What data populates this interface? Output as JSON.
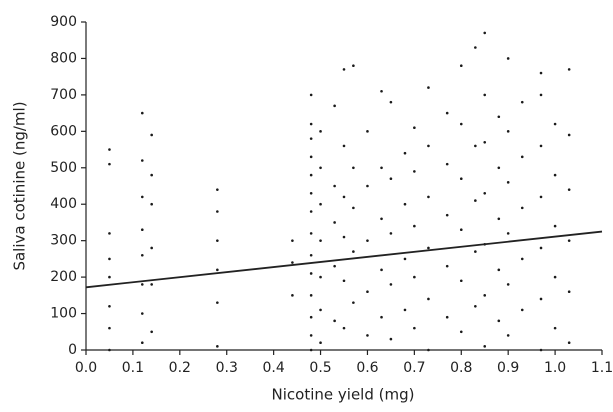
{
  "chart_data": {
    "type": "scatter",
    "x_label": "Nicotine yield (mg)",
    "y_label": "Saliva cotinine (ng/ml)",
    "color": "#1a1a1a",
    "xlim": [
      0,
      1.1
    ],
    "ylim": [
      0,
      900
    ],
    "xticks": [
      {
        "value": 0,
        "label": "0.0"
      },
      0.1,
      0.2,
      0.3,
      0.4,
      0.5,
      0.6,
      0.7,
      0.8,
      0.9,
      {
        "value": 1,
        "label": "1.0"
      },
      1.1
    ],
    "yticks": [
      0,
      100,
      200,
      300,
      400,
      500,
      600,
      700,
      800,
      900
    ],
    "x": [
      0.05,
      0.05,
      0.05,
      0.05,
      0.05,
      0.05,
      0.05,
      0.05,
      0.12,
      0.12,
      0.12,
      0.12,
      0.12,
      0.12,
      0.12,
      0.12,
      0.14,
      0.14,
      0.14,
      0.14,
      0.14,
      0.14,
      0.28,
      0.28,
      0.28,
      0.28,
      0.28,
      0.28,
      0.44,
      0.44,
      0.44,
      0.48,
      0.48,
      0.48,
      0.48,
      0.48,
      0.48,
      0.48,
      0.48,
      0.48,
      0.48,
      0.48,
      0.48,
      0.48,
      0.48,
      0.5,
      0.5,
      0.5,
      0.5,
      0.5,
      0.5,
      0.5,
      0.53,
      0.53,
      0.53,
      0.53,
      0.53,
      0.55,
      0.55,
      0.55,
      0.55,
      0.55,
      0.55,
      0.57,
      0.57,
      0.57,
      0.57,
      0.57,
      0.6,
      0.6,
      0.6,
      0.6,
      0.6,
      0.63,
      0.63,
      0.63,
      0.63,
      0.63,
      0.65,
      0.65,
      0.65,
      0.65,
      0.65,
      0.68,
      0.68,
      0.68,
      0.68,
      0.7,
      0.7,
      0.7,
      0.7,
      0.7,
      0.73,
      0.73,
      0.73,
      0.73,
      0.73,
      0.73,
      0.77,
      0.77,
      0.77,
      0.77,
      0.77,
      0.8,
      0.8,
      0.8,
      0.8,
      0.8,
      0.8,
      0.83,
      0.83,
      0.83,
      0.83,
      0.83,
      0.85,
      0.85,
      0.85,
      0.85,
      0.85,
      0.85,
      0.85,
      0.88,
      0.88,
      0.88,
      0.88,
      0.88,
      0.9,
      0.9,
      0.9,
      0.9,
      0.9,
      0.9,
      0.93,
      0.93,
      0.93,
      0.93,
      0.93,
      0.97,
      0.97,
      0.97,
      0.97,
      0.97,
      0.97,
      0.97,
      1.0,
      1.0,
      1.0,
      1.0,
      1.0,
      1.03,
      1.03,
      1.03,
      1.03,
      1.03,
      1.03
    ],
    "values": [
      0,
      60,
      120,
      200,
      250,
      320,
      510,
      550,
      20,
      100,
      180,
      260,
      330,
      420,
      520,
      650,
      50,
      180,
      280,
      400,
      480,
      590,
      10,
      130,
      220,
      300,
      380,
      440,
      150,
      240,
      300,
      0,
      40,
      90,
      150,
      210,
      260,
      320,
      380,
      430,
      480,
      530,
      580,
      620,
      700,
      20,
      110,
      200,
      300,
      400,
      500,
      600,
      80,
      230,
      350,
      450,
      670,
      60,
      190,
      310,
      420,
      560,
      770,
      130,
      270,
      390,
      500,
      780,
      40,
      160,
      300,
      450,
      600,
      90,
      220,
      360,
      500,
      710,
      30,
      180,
      320,
      470,
      680,
      110,
      250,
      400,
      540,
      60,
      200,
      340,
      490,
      610,
      0,
      140,
      280,
      420,
      560,
      720,
      90,
      230,
      370,
      510,
      650,
      50,
      190,
      330,
      470,
      620,
      780,
      120,
      270,
      410,
      560,
      830,
      10,
      150,
      290,
      430,
      570,
      700,
      870,
      80,
      220,
      360,
      500,
      640,
      40,
      180,
      320,
      460,
      600,
      800,
      110,
      250,
      390,
      530,
      680,
      0,
      140,
      280,
      420,
      560,
      700,
      760,
      60,
      200,
      340,
      480,
      620,
      20,
      160,
      300,
      440,
      590,
      770
    ],
    "trend_line": {
      "x": [
        0,
        1.1
      ],
      "y": [
        172,
        325
      ],
      "color": "#222222"
    }
  }
}
